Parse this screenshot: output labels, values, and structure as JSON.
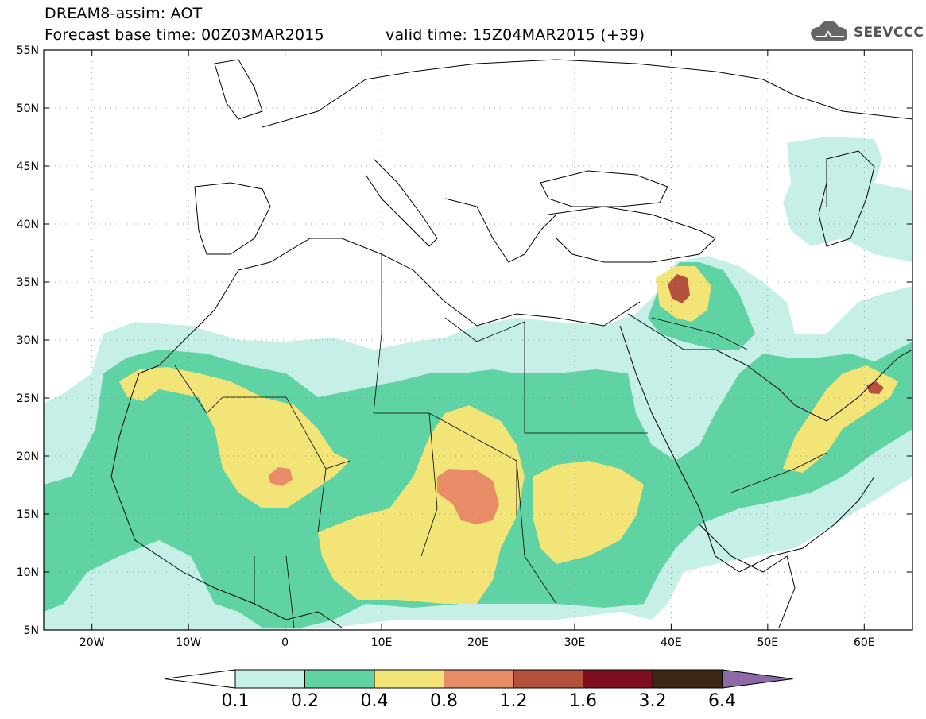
{
  "header": {
    "title": "DREAM8-assim: AOT",
    "base_time": "Forecast base time: 00Z03MAR2015",
    "valid_time": "valid time: 15Z04MAR2015 (+39)"
  },
  "logo": {
    "text": "SEEVCCC",
    "icon": "cloud-icon"
  },
  "map": {
    "lat_labels": [
      "55N",
      "50N",
      "45N",
      "40N",
      "35N",
      "30N",
      "25N",
      "20N",
      "15N",
      "10N",
      "5N"
    ],
    "lon_labels": [
      "20W",
      "10W",
      "0",
      "10E",
      "20E",
      "30E",
      "40E",
      "50E",
      "60E"
    ],
    "lat_range": [
      5,
      55
    ],
    "lon_range": [
      -25,
      65
    ],
    "gridlines": "dotted"
  },
  "colorbar": {
    "labels": [
      "0.1",
      "0.2",
      "0.4",
      "0.8",
      "1.2",
      "1.6",
      "3.2",
      "6.4"
    ],
    "colors": [
      "#ffffff",
      "#c6efe7",
      "#5fd3a3",
      "#f2e476",
      "#e98c68",
      "#b4513e",
      "#7d0f1f",
      "#3c2614",
      "#8d6aa5"
    ]
  },
  "legend_colors": {
    "c01": "#c6efe7",
    "c02": "#5fd3a3",
    "c04": "#f2e476",
    "c08": "#e98c68",
    "c12": "#b4513e"
  }
}
